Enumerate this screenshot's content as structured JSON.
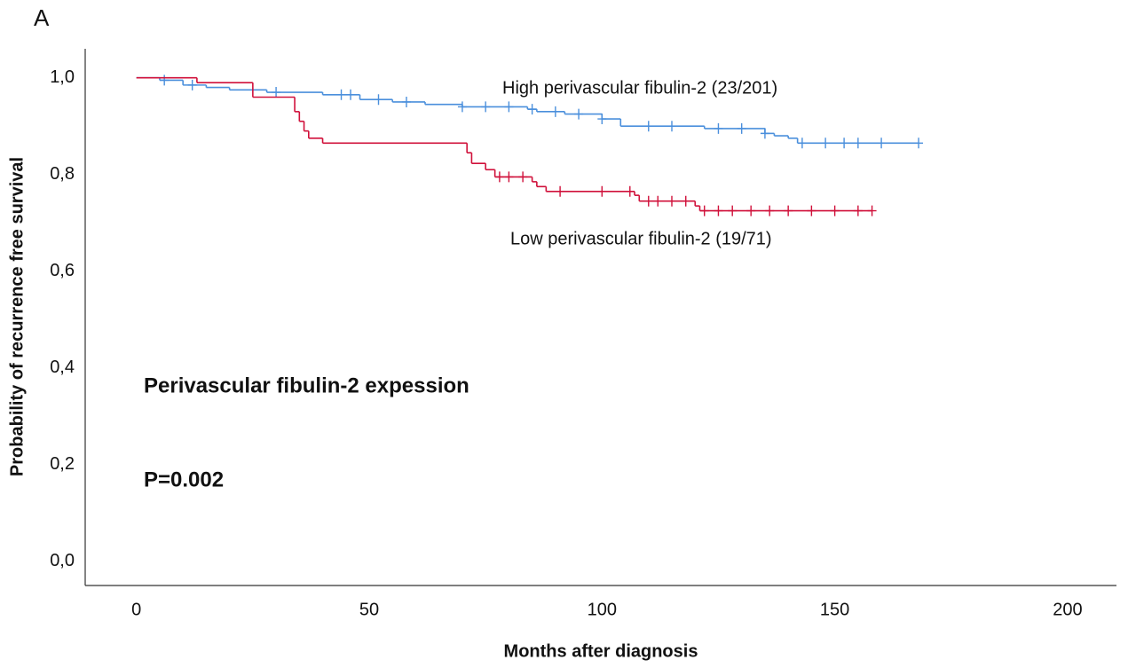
{
  "panel_label": "A",
  "chart_data": {
    "type": "step",
    "title": "Perivascular fibulin-2 expession",
    "annotation": "P=0.002",
    "x_label": "Months after diagnosis",
    "y_label": "Probability of recurrence free survival",
    "xlim": [
      -11,
      210.5
    ],
    "ylim": [
      -0.05,
      1.06
    ],
    "xticks": [
      0,
      50,
      100,
      150,
      200
    ],
    "yticks": [
      {
        "value": 0,
        "label": "0,0"
      },
      {
        "value": 0.2,
        "label": "0,2"
      },
      {
        "value": 0.4,
        "label": "0,4"
      },
      {
        "value": 0.6,
        "label": "0,6"
      },
      {
        "value": 0.8,
        "label": "0,8"
      },
      {
        "value": 1.0,
        "label": "1,0"
      }
    ],
    "series": [
      {
        "name": "High perivascular fibulin-2 (23/201)",
        "color": "#4a8fdc",
        "x": [
          0,
          5,
          10,
          15,
          20,
          28,
          40,
          48,
          55,
          62,
          70,
          84,
          86,
          92,
          100,
          104,
          122,
          135,
          137,
          140,
          142,
          168
        ],
        "values": [
          1.0,
          0.995,
          0.985,
          0.98,
          0.975,
          0.97,
          0.965,
          0.955,
          0.95,
          0.945,
          0.94,
          0.935,
          0.93,
          0.925,
          0.915,
          0.9,
          0.895,
          0.885,
          0.88,
          0.875,
          0.865,
          0.865
        ],
        "censored": {
          "x": [
            6,
            12,
            30,
            44,
            46,
            52,
            58,
            70,
            75,
            80,
            85,
            90,
            95,
            100,
            110,
            115,
            125,
            130,
            135,
            143,
            148,
            152,
            155,
            160,
            168
          ],
          "values": [
            0.995,
            0.985,
            0.97,
            0.965,
            0.965,
            0.955,
            0.95,
            0.94,
            0.94,
            0.94,
            0.935,
            0.93,
            0.925,
            0.915,
            0.9,
            0.9,
            0.895,
            0.895,
            0.885,
            0.865,
            0.865,
            0.865,
            0.865,
            0.865,
            0.865
          ]
        }
      },
      {
        "name": "Low perivascular fibulin-2 (19/71)",
        "color": "#d0103a",
        "x": [
          0,
          13,
          25,
          34,
          35,
          36,
          37,
          40,
          71,
          72,
          75,
          77,
          85,
          86,
          88,
          107,
          108,
          120,
          121,
          158
        ],
        "values": [
          1.0,
          0.99,
          0.96,
          0.93,
          0.91,
          0.89,
          0.875,
          0.865,
          0.845,
          0.823,
          0.81,
          0.795,
          0.785,
          0.775,
          0.765,
          0.757,
          0.745,
          0.735,
          0.725,
          0.725
        ],
        "censored": {
          "x": [
            78,
            80,
            83,
            91,
            100,
            106,
            110,
            112,
            115,
            118,
            122,
            125,
            128,
            132,
            136,
            140,
            145,
            150,
            155,
            158
          ],
          "values": [
            0.795,
            0.795,
            0.795,
            0.765,
            0.765,
            0.765,
            0.745,
            0.745,
            0.745,
            0.745,
            0.725,
            0.725,
            0.725,
            0.725,
            0.725,
            0.725,
            0.725,
            0.725,
            0.725,
            0.725
          ]
        }
      }
    ]
  }
}
